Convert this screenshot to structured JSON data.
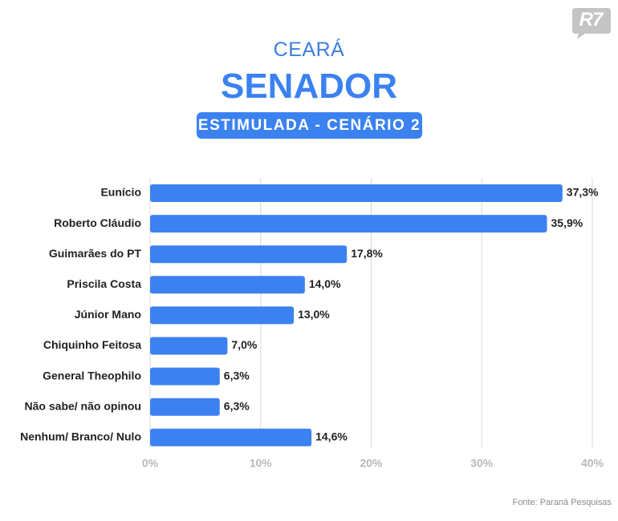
{
  "logo": {
    "text": "R7"
  },
  "header": {
    "state": "CEARÁ",
    "office": "SENADOR",
    "scenario": "ESTIMULADA - CENÁRIO 2"
  },
  "footer": {
    "source": "Fonte: Paraná Pesquisas"
  },
  "colors": {
    "bar": "#3b82f0",
    "grid": "#d9d9d9",
    "logo": "#c4c4c4"
  },
  "chart_data": {
    "type": "bar",
    "orientation": "horizontal",
    "categories": [
      "Eunício",
      "Roberto Cláudio",
      "Guimarães do PT",
      "Priscila Costa",
      "Júnior Mano",
      "Chiquinho Feitosa",
      "General Theophilo",
      "Não sabe/ não opinou",
      "Nenhum/ Branco/ Nulo"
    ],
    "values": [
      37.3,
      35.9,
      17.8,
      14.0,
      13.0,
      7.0,
      6.3,
      6.3,
      14.6
    ],
    "value_labels": [
      "37,3%",
      "35,9%",
      "17,8%",
      "14,0%",
      "13,0%",
      "7,0%",
      "6,3%",
      "6,3%",
      "14,6%"
    ],
    "xlim": [
      0,
      40
    ],
    "xticks": [
      0,
      10,
      20,
      30,
      40
    ],
    "xtick_labels": [
      "0%",
      "10%",
      "20%",
      "30%",
      "40%"
    ],
    "title": "SENADOR",
    "grid": true
  }
}
